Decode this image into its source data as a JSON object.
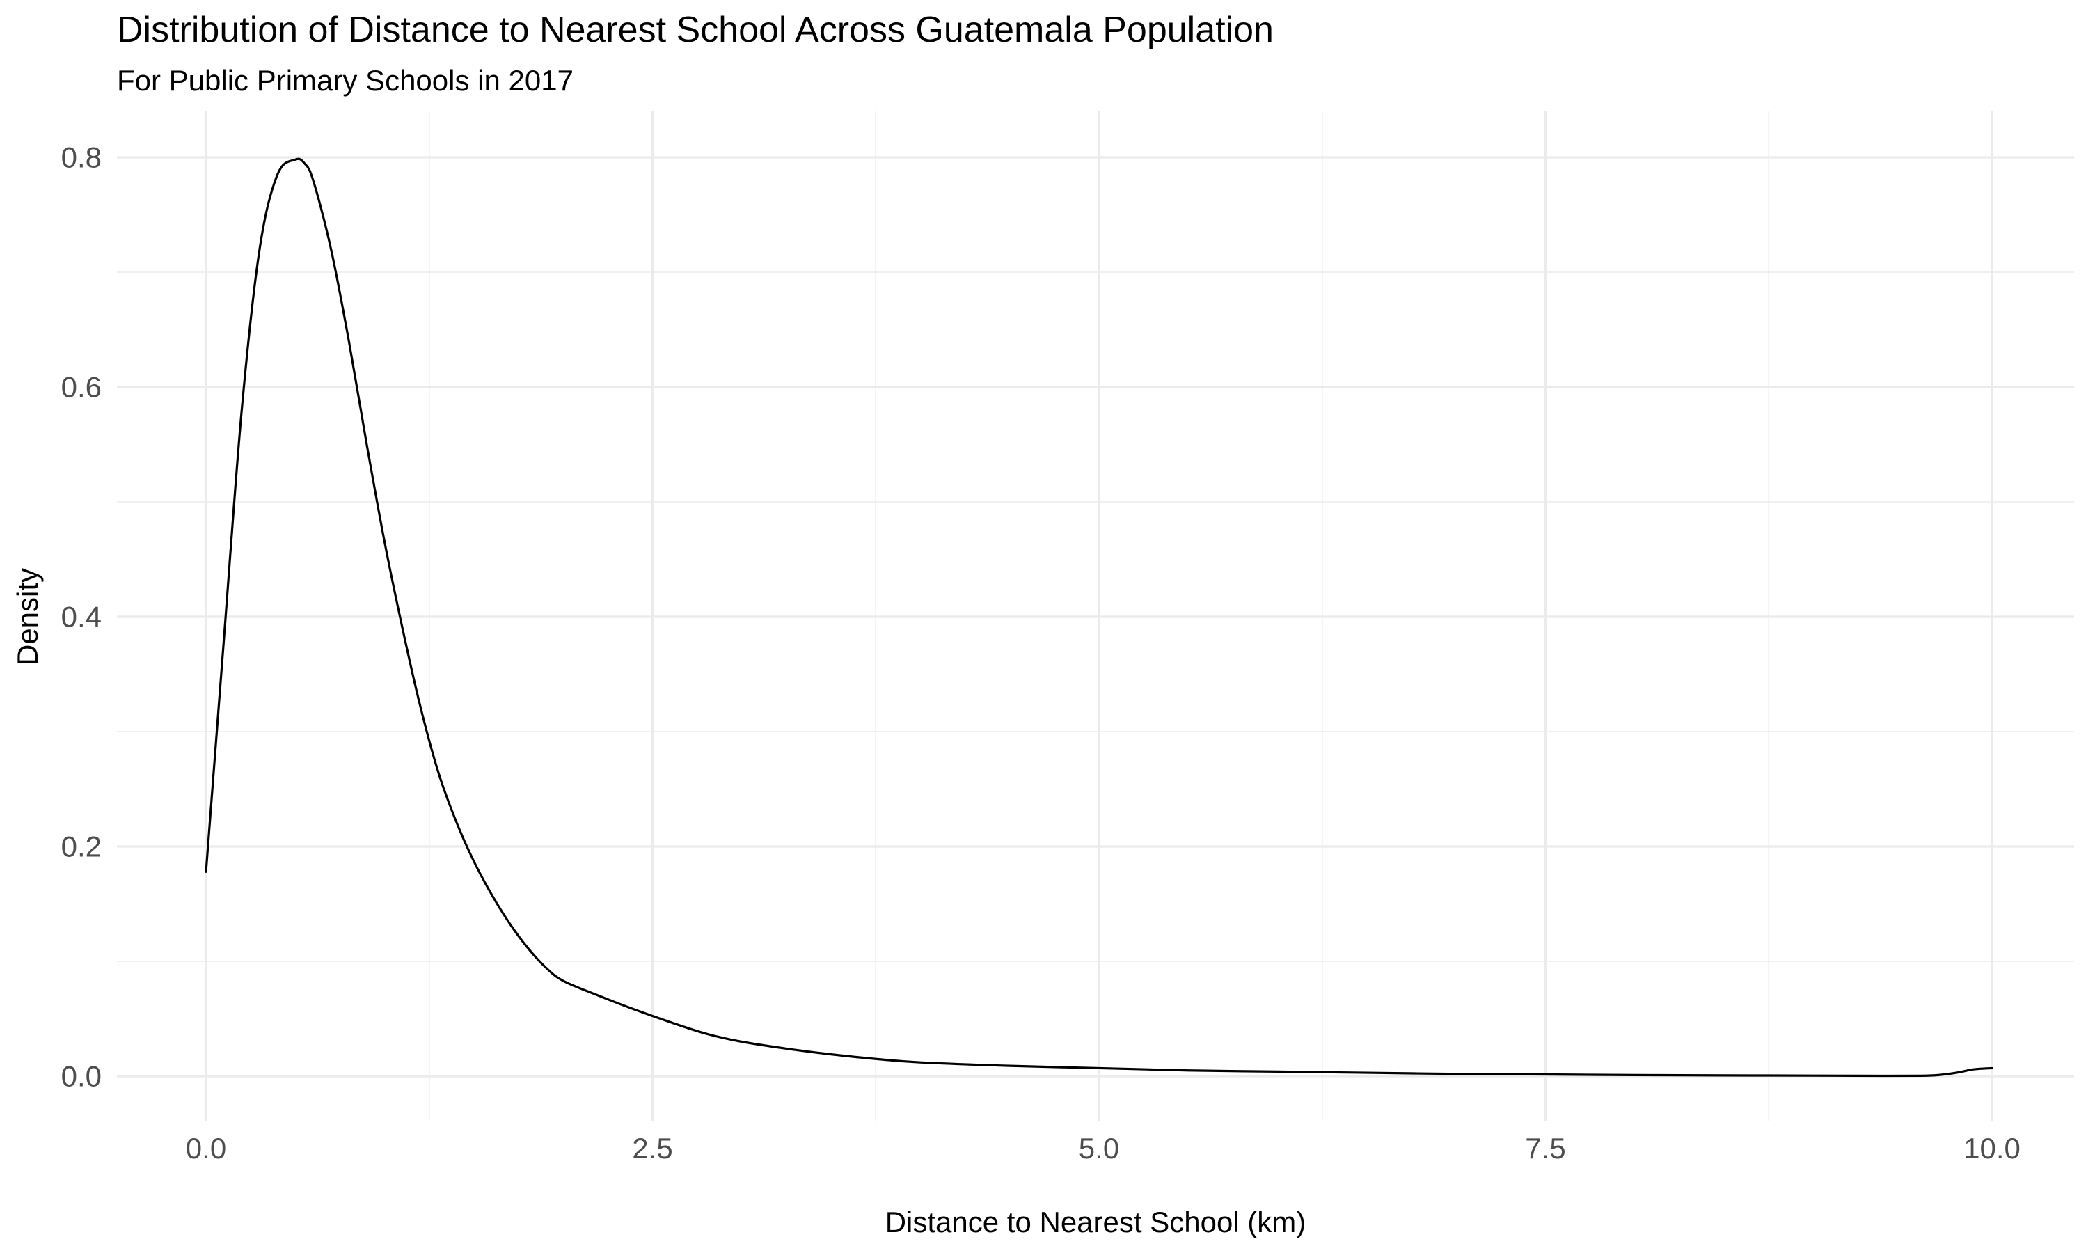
{
  "chart_data": {
    "type": "line",
    "title": "Distribution of Distance to Nearest School Across Guatemala Population",
    "subtitle": "For Public Primary Schools in 2017",
    "xlabel": "Distance to Nearest School (km)",
    "ylabel": "Density",
    "xlim": [
      -0.5,
      10.5
    ],
    "ylim": [
      -0.04,
      0.84
    ],
    "x_ticks": [
      0,
      2.5,
      5,
      7.5,
      10
    ],
    "x_tick_labels": [
      "0.0",
      "2.5",
      "5.0",
      "7.5",
      "10.0"
    ],
    "y_ticks": [
      0,
      0.2,
      0.4,
      0.6,
      0.8
    ],
    "y_tick_labels": [
      "0.0",
      "0.2",
      "0.4",
      "0.6",
      "0.8"
    ],
    "x_minor_ticks": [
      1.25,
      3.75,
      6.25,
      8.75
    ],
    "y_minor_ticks": [
      0.1,
      0.3,
      0.5,
      0.7
    ],
    "grid": true,
    "legend": "none",
    "line_color": "#000000",
    "series": [
      {
        "x": [
          0,
          0.1,
          0.2,
          0.3,
          0.4,
          0.5,
          0.55,
          0.6,
          0.7,
          0.8,
          0.9,
          1.0,
          1.1,
          1.2,
          1.3,
          1.4,
          1.5,
          1.6,
          1.7,
          1.8,
          1.9,
          2.0,
          2.2,
          2.4,
          2.6,
          2.8,
          3.0,
          3.25,
          3.5,
          3.75,
          4.0,
          4.5,
          5.0,
          5.5,
          6.0,
          6.5,
          7.0,
          7.5,
          8.0,
          8.5,
          9.0,
          9.4,
          9.6,
          9.7,
          9.8,
          9.9,
          10.0
        ],
        "y": [
          0.178,
          0.38,
          0.58,
          0.72,
          0.785,
          0.798,
          0.795,
          0.78,
          0.72,
          0.64,
          0.55,
          0.465,
          0.39,
          0.322,
          0.265,
          0.222,
          0.187,
          0.158,
          0.133,
          0.112,
          0.095,
          0.083,
          0.07,
          0.058,
          0.047,
          0.037,
          0.03,
          0.024,
          0.019,
          0.015,
          0.012,
          0.009,
          0.007,
          0.005,
          0.004,
          0.003,
          0.002,
          0.0015,
          0.001,
          0.0007,
          0.0005,
          0.0003,
          0.0004,
          0.001,
          0.003,
          0.006,
          0.007
        ]
      }
    ]
  }
}
